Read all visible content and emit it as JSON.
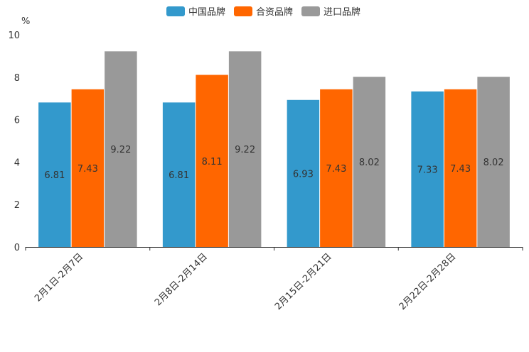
{
  "chart_data": {
    "type": "bar",
    "title": "",
    "xlabel": "",
    "ylabel": "%",
    "ylim": [
      0,
      10
    ],
    "yticks": [
      0,
      2,
      4,
      6,
      8,
      10
    ],
    "grid": false,
    "legend_position": "top-center",
    "categories": [
      "2月1日-2月7日",
      "2月8日-2月14日",
      "2月15日-2月21日",
      "2月22日-2月28日"
    ],
    "series": [
      {
        "name": "中国品牌",
        "color": "#3399cc",
        "values": [
          6.81,
          6.81,
          6.93,
          7.33
        ]
      },
      {
        "name": "合资品牌",
        "color": "#ff6600",
        "values": [
          7.43,
          8.11,
          7.43,
          7.43
        ]
      },
      {
        "name": "进口品牌",
        "color": "#999999",
        "values": [
          9.22,
          9.22,
          8.02,
          8.02
        ]
      }
    ]
  }
}
